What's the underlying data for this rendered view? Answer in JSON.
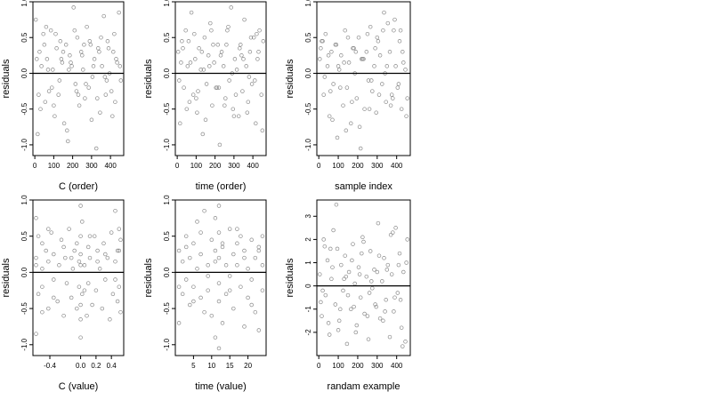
{
  "chart_data": [
    {
      "type": "scatter",
      "xlabel": "C (order)",
      "ylabel": "residuals",
      "xlim": [
        -10,
        470
      ],
      "ylim": [
        -1.15,
        1.0
      ],
      "xticks": [
        0,
        100,
        200,
        300,
        400
      ],
      "xtick_labels": [
        "0",
        "100",
        "200",
        "300",
        "400"
      ],
      "yticks": [
        -1.0,
        -0.5,
        0.0,
        0.5,
        1.0
      ],
      "ytick_labels": [
        "-1.0",
        "-0.5",
        "0.0",
        "0.5",
        "1.0"
      ],
      "hline": 0,
      "x": [
        5,
        15,
        25,
        35,
        45,
        55,
        65,
        75,
        85,
        95,
        105,
        115,
        125,
        135,
        145,
        155,
        165,
        175,
        185,
        195,
        205,
        215,
        225,
        235,
        245,
        255,
        265,
        275,
        285,
        295,
        305,
        315,
        325,
        335,
        345,
        355,
        365,
        375,
        385,
        395,
        405,
        415,
        425,
        435,
        445,
        455,
        10,
        30,
        50,
        70,
        90,
        110,
        130,
        150,
        170,
        190,
        210,
        230,
        250,
        270,
        290,
        310,
        330,
        350,
        370,
        390,
        410,
        430,
        450,
        20,
        60,
        100,
        140,
        180,
        220,
        260,
        300,
        340,
        380,
        420
      ],
      "y": [
        0.75,
        -0.85,
        0.3,
        0.1,
        0.55,
        -0.4,
        0.2,
        -0.25,
        0.6,
        0.05,
        -0.6,
        0.35,
        -0.3,
        0.45,
        0.15,
        -0.7,
        0.4,
        -0.95,
        0.25,
        0.1,
        0.92,
        -0.15,
        0.5,
        -0.45,
        0.3,
        0.05,
        -0.35,
        0.65,
        -0.2,
        0.4,
        -0.05,
        0.2,
        -1.05,
        0.35,
        -0.55,
        0.1,
        0.8,
        -0.3,
        0.45,
        0.0,
        -0.25,
        0.3,
        -0.4,
        0.15,
        0.85,
        -0.1,
        0.2,
        -0.5,
        0.4,
        0.05,
        -0.2,
        0.55,
        -0.1,
        0.3,
        -0.8,
        0.15,
        0.6,
        -0.3,
        0.25,
        -0.15,
        0.45,
        0.1,
        -0.35,
        0.5,
        -0.05,
        0.35,
        -0.6,
        0.2,
        0.1,
        -0.3,
        0.65,
        -0.45,
        0.2,
        0.05,
        -0.25,
        0.4,
        -0.65,
        0.3,
        -0.1,
        0.55
      ]
    },
    {
      "type": "scatter",
      "xlabel": "time (order)",
      "ylabel": "residuals",
      "xlim": [
        -10,
        470
      ],
      "ylim": [
        -1.15,
        1.0
      ],
      "xticks": [
        0,
        100,
        200,
        300,
        400
      ],
      "xtick_labels": [
        "0",
        "100",
        "200",
        "300",
        "400"
      ],
      "yticks": [
        -1.0,
        -0.5,
        0.0,
        0.5,
        1.0
      ],
      "ytick_labels": [
        "-1.0",
        "-0.5",
        "0.0",
        "0.5",
        "1.0"
      ],
      "hline": 0,
      "x": [
        5,
        15,
        25,
        35,
        45,
        55,
        65,
        75,
        85,
        95,
        105,
        115,
        125,
        135,
        145,
        155,
        165,
        175,
        185,
        195,
        205,
        215,
        225,
        235,
        245,
        255,
        265,
        275,
        285,
        295,
        305,
        315,
        325,
        335,
        345,
        355,
        365,
        375,
        385,
        395,
        405,
        415,
        425,
        435,
        445,
        455,
        10,
        30,
        50,
        70,
        90,
        110,
        130,
        150,
        170,
        190,
        210,
        230,
        250,
        270,
        290,
        310,
        330,
        350,
        370,
        390,
        410,
        430,
        450,
        20,
        60,
        100,
        140,
        180,
        220,
        260,
        300,
        340,
        380,
        420
      ],
      "y": [
        0.3,
        -0.7,
        0.45,
        -0.2,
        0.6,
        0.1,
        -0.4,
        0.85,
        -0.3,
        0.2,
        -0.55,
        0.35,
        0.05,
        -0.85,
        0.5,
        -0.15,
        0.25,
        0.7,
        -0.45,
        0.15,
        -0.2,
        0.4,
        -1.0,
        0.3,
        0.1,
        -0.35,
        0.6,
        -0.1,
        0.92,
        -0.5,
        0.2,
        0.05,
        -0.6,
        0.4,
        -0.25,
        0.75,
        0.1,
        -0.4,
        0.3,
        -0.15,
        0.5,
        -0.7,
        0.2,
        0.6,
        -0.3,
        0.45,
        -0.1,
        0.35,
        -0.5,
        0.15,
        0.55,
        -0.25,
        0.3,
        -0.65,
        0.1,
        0.4,
        -0.2,
        0.25,
        -0.45,
        0.65,
        0.0,
        -0.3,
        0.35,
        0.2,
        -0.55,
        0.5,
        -0.1,
        0.3,
        -0.8,
        0.15,
        0.45,
        -0.35,
        0.05,
        0.6,
        -0.2,
        0.4,
        -0.6,
        0.25,
        -0.05,
        0.55
      ]
    },
    {
      "type": "scatter",
      "xlabel": "sample index",
      "ylabel": "residuals",
      "xlim": [
        -10,
        470
      ],
      "ylim": [
        -1.15,
        1.0
      ],
      "xticks": [
        0,
        100,
        200,
        300,
        400
      ],
      "xtick_labels": [
        "0",
        "100",
        "200",
        "300",
        "400"
      ],
      "yticks": [
        -1.0,
        -0.5,
        0.0,
        0.5,
        1.0
      ],
      "ytick_labels": [
        "-1.0",
        "-0.5",
        "0.0",
        "0.5",
        "1.0"
      ],
      "hline": 0,
      "x": [
        5,
        15,
        25,
        35,
        45,
        55,
        65,
        75,
        85,
        95,
        105,
        115,
        125,
        135,
        145,
        155,
        165,
        175,
        185,
        195,
        205,
        215,
        225,
        235,
        245,
        255,
        265,
        275,
        285,
        295,
        305,
        315,
        325,
        335,
        345,
        355,
        365,
        375,
        385,
        395,
        405,
        415,
        425,
        435,
        445,
        455,
        10,
        30,
        50,
        70,
        90,
        110,
        130,
        150,
        170,
        190,
        210,
        230,
        250,
        270,
        290,
        310,
        330,
        350,
        370,
        390,
        410,
        430,
        450,
        20,
        60,
        100,
        140,
        180,
        220,
        260,
        300,
        340,
        380,
        420
      ],
      "y": [
        0.2,
        0.45,
        -0.3,
        0.55,
        0.1,
        -0.6,
        0.3,
        -0.15,
        0.4,
        -0.9,
        0.05,
        0.25,
        -0.45,
        0.6,
        -0.2,
        0.15,
        -0.7,
        0.35,
        0.0,
        -0.35,
        0.5,
        -1.05,
        0.2,
        -0.5,
        0.3,
        -0.1,
        0.65,
        -0.25,
        0.1,
        -0.55,
        0.45,
        0.25,
        -0.15,
        0.85,
        -0.4,
        0.7,
        0.3,
        -0.3,
        0.6,
        0.1,
        -0.2,
        0.45,
        -0.5,
        0.15,
        0.05,
        -0.35,
        0.35,
        -0.05,
        0.25,
        -0.65,
        0.4,
        -0.2,
        0.15,
        0.5,
        -0.4,
        0.3,
        -0.75,
        0.2,
        0.55,
        -0.1,
        0.35,
        -0.3,
        0.6,
        0.1,
        -0.45,
        0.75,
        -0.15,
        0.3,
        -0.6,
        0.45,
        -0.25,
        0.1,
        -0.8,
        0.35,
        0.2,
        -0.5,
        0.5,
        0.0,
        -0.35,
        0.6
      ]
    },
    {
      "type": "scatter",
      "xlabel": "C (value)",
      "ylabel": "residuals",
      "xlim": [
        -0.62,
        0.56
      ],
      "ylim": [
        -1.15,
        1.0
      ],
      "xticks": [
        -0.4,
        0.0,
        0.2,
        0.4
      ],
      "xtick_labels": [
        "-0.4",
        "0.0",
        "0.2",
        "0.4"
      ],
      "yticks": [
        -1.0,
        -0.5,
        0.0,
        0.5,
        1.0
      ],
      "ytick_labels": [
        "-1.0",
        "-0.5",
        "0.0",
        "0.5",
        "1.0"
      ],
      "hline": 0,
      "x": [
        -0.58,
        -0.58,
        -0.58,
        -0.55,
        -0.55,
        -0.5,
        -0.5,
        -0.5,
        -0.45,
        -0.42,
        -0.42,
        -0.38,
        -0.35,
        -0.35,
        -0.3,
        -0.28,
        -0.25,
        -0.22,
        -0.2,
        -0.18,
        -0.15,
        -0.12,
        -0.1,
        -0.08,
        -0.05,
        -0.05,
        -0.02,
        -0.02,
        0.0,
        0.0,
        0.0,
        0.0,
        0.0,
        0.02,
        0.02,
        0.05,
        0.08,
        0.1,
        0.1,
        0.12,
        0.15,
        0.18,
        0.2,
        0.22,
        0.25,
        0.28,
        0.3,
        0.32,
        0.35,
        0.38,
        0.4,
        0.42,
        0.45,
        0.45,
        0.48,
        0.48,
        0.5,
        0.5,
        0.52,
        0.52,
        -0.58,
        -0.5,
        -0.42,
        -0.35,
        -0.22,
        -0.12,
        0.0,
        0.0,
        0.05,
        0.12,
        0.22,
        0.32,
        0.45,
        0.5
      ],
      "y": [
        0.75,
        -0.85,
        0.2,
        0.5,
        -0.3,
        0.4,
        -0.2,
        0.05,
        0.3,
        -0.5,
        0.15,
        0.55,
        -0.1,
        0.25,
        -0.4,
        0.1,
        0.45,
        -0.6,
        0.2,
        -0.15,
        0.6,
        -0.35,
        0.05,
        0.3,
        -0.5,
        0.4,
        0.15,
        -0.2,
        0.92,
        -0.9,
        0.5,
        -0.45,
        0.25,
        0.7,
        -0.3,
        0.1,
        -0.6,
        0.35,
        -0.15,
        0.2,
        -0.45,
        0.5,
        -0.25,
        0.3,
        0.05,
        -0.5,
        0.4,
        -0.1,
        0.2,
        -0.65,
        0.55,
        -0.3,
        0.85,
        0.15,
        -0.4,
        0.3,
        0.6,
        -0.2,
        0.45,
        -0.55,
        0.1,
        -0.55,
        0.6,
        -0.35,
        0.35,
        0.2,
        -0.65,
        0.1,
        -0.25,
        0.5,
        0.15,
        0.25,
        -0.1,
        0.3
      ]
    },
    {
      "type": "scatter",
      "xlabel": "time (value)",
      "ylabel": "residuals",
      "xlim": [
        0,
        25
      ],
      "ylim": [
        -1.15,
        1.0
      ],
      "xticks": [
        5,
        10,
        15,
        20
      ],
      "xtick_labels": [
        "5",
        "10",
        "15",
        "20"
      ],
      "yticks": [
        -1.0,
        -0.5,
        0.0,
        0.5,
        1.0
      ],
      "ytick_labels": [
        "-1.0",
        "-0.5",
        "0.0",
        "0.5",
        "1.0"
      ],
      "hline": 0,
      "x": [
        1,
        1,
        2,
        2,
        3,
        3,
        4,
        4,
        5,
        5,
        6,
        6,
        7,
        7,
        8,
        8,
        9,
        9,
        10,
        10,
        11,
        11,
        11,
        12,
        12,
        12,
        12,
        12,
        13,
        13,
        14,
        14,
        15,
        15,
        16,
        16,
        17,
        17,
        18,
        18,
        19,
        19,
        20,
        20,
        21,
        21,
        22,
        22,
        23,
        23,
        24,
        24,
        1,
        3,
        5,
        7,
        9,
        11,
        12,
        13,
        15,
        17,
        19,
        21,
        23,
        24
      ],
      "y": [
        0.3,
        -0.7,
        0.15,
        -0.3,
        0.5,
        -0.1,
        0.2,
        -0.45,
        0.4,
        -0.2,
        0.05,
        0.7,
        -0.35,
        0.25,
        0.85,
        -0.55,
        0.1,
        -0.25,
        0.45,
        -0.6,
        -0.9,
        0.3,
        0.75,
        0.92,
        -0.4,
        0.2,
        0.55,
        -0.15,
        0.35,
        -0.7,
        0.1,
        -0.3,
        0.6,
        -0.05,
        0.25,
        -0.5,
        0.4,
        0.1,
        -0.2,
        0.5,
        -0.75,
        0.3,
        0.05,
        -0.35,
        0.45,
        -0.1,
        0.2,
        -0.55,
        0.35,
        -0.8,
        0.5,
        0.1,
        -0.2,
        0.35,
        -0.4,
        0.55,
        -0.05,
        0.15,
        -1.05,
        0.4,
        -0.25,
        0.6,
        0.2,
        -0.45,
        0.3,
        -0.25
      ]
    },
    {
      "type": "scatter",
      "xlabel": "randam example",
      "ylabel": "residuals",
      "xlim": [
        -10,
        470
      ],
      "ylim": [
        -3.0,
        3.7
      ],
      "xticks": [
        0,
        100,
        200,
        300,
        400
      ],
      "xtick_labels": [
        "0",
        "100",
        "200",
        "300",
        "400"
      ],
      "yticks": [
        -2,
        -1,
        0,
        1,
        2,
        3
      ],
      "ytick_labels": [
        "-2",
        "-1",
        "0",
        "1",
        "2",
        "3"
      ],
      "hline": 0,
      "x": [
        5,
        15,
        25,
        35,
        45,
        55,
        65,
        75,
        85,
        95,
        105,
        115,
        125,
        135,
        145,
        155,
        165,
        175,
        185,
        195,
        205,
        215,
        225,
        235,
        245,
        255,
        265,
        275,
        285,
        295,
        305,
        315,
        325,
        335,
        345,
        355,
        365,
        375,
        385,
        395,
        405,
        415,
        425,
        435,
        445,
        455,
        10,
        30,
        50,
        70,
        90,
        110,
        130,
        150,
        170,
        190,
        210,
        230,
        250,
        270,
        290,
        310,
        330,
        350,
        370,
        390,
        410,
        430,
        450,
        20,
        60,
        100,
        140,
        180,
        220,
        260,
        300,
        340,
        380,
        420
      ],
      "y": [
        0.5,
        -1.3,
        2.0,
        -0.4,
        1.1,
        -2.1,
        0.3,
        2.4,
        -0.8,
        1.6,
        -1.5,
        0.9,
        -0.2,
        1.3,
        -2.5,
        0.6,
        -1.0,
        1.8,
        0.1,
        -1.7,
        0.8,
        -0.5,
        2.1,
        -1.2,
        0.4,
        -2.3,
        1.5,
        -0.1,
        0.7,
        -0.9,
        2.7,
        -1.4,
        0.2,
        1.2,
        -0.6,
        0.9,
        -2.2,
        0.5,
        -1.1,
        2.5,
        -0.3,
        1.4,
        -1.8,
        0.6,
        -2.4,
        2.0,
        -0.7,
        1.7,
        -1.6,
        0.8,
        3.5,
        -1.0,
        0.3,
        -0.4,
        1.1,
        -2.0,
        0.5,
        1.9,
        -1.3,
        0.2,
        -0.8,
        1.3,
        -1.5,
        0.7,
        2.2,
        -0.5,
        0.9,
        -2.6,
        1.0,
        -0.2,
        1.6,
        -1.9,
        0.4,
        -0.9,
        1.4,
        -0.3,
        0.6,
        -1.1,
        2.3,
        -0.6
      ]
    }
  ]
}
